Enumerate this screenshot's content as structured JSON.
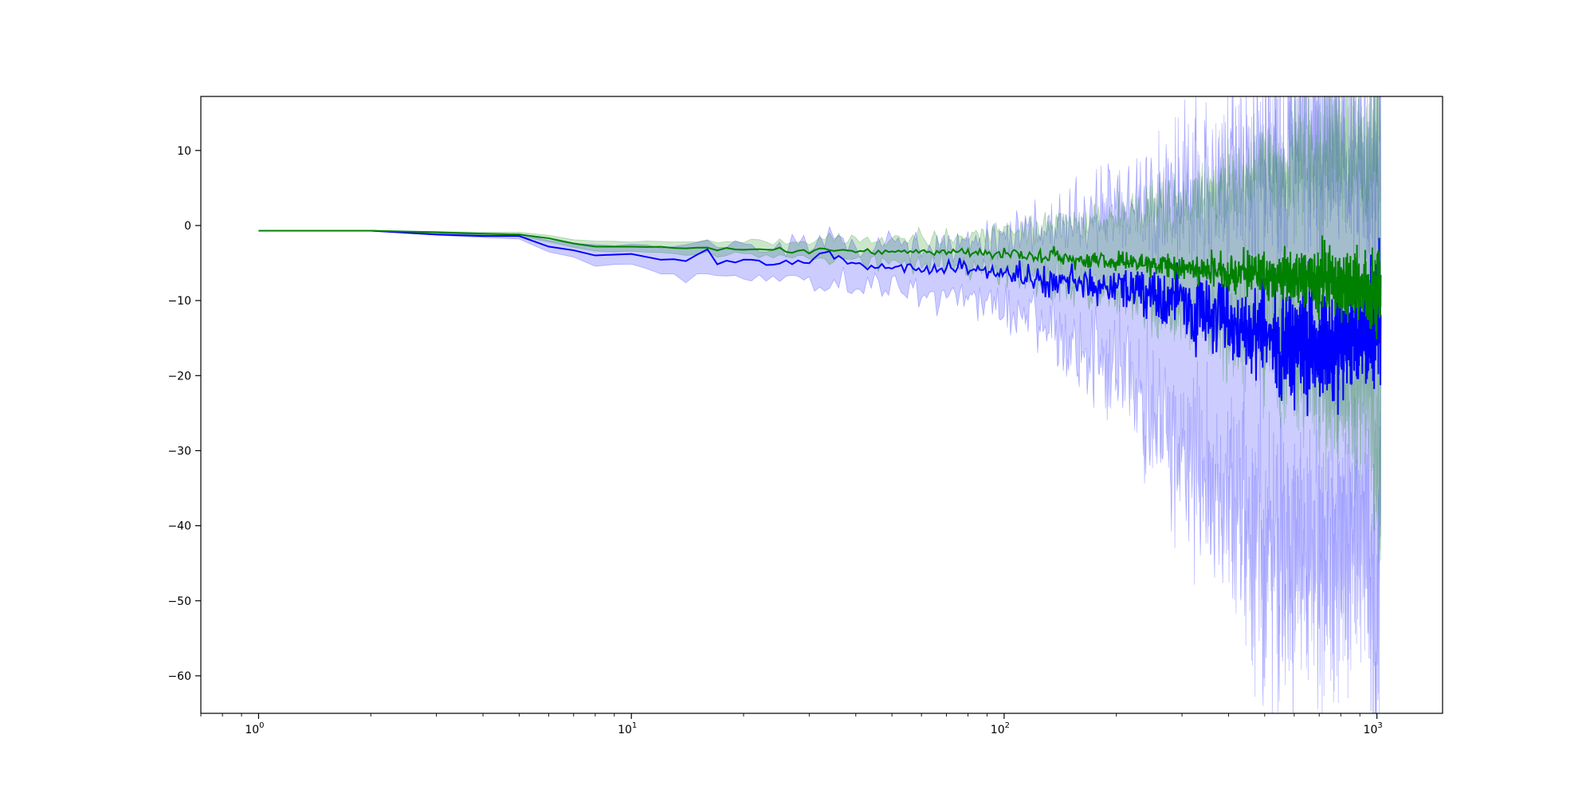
{
  "chart_data": {
    "type": "line",
    "title": "",
    "xlabel": "",
    "ylabel": "",
    "xscale": "log",
    "xlim": [
      0.7,
      1500
    ],
    "ylim": [
      -65,
      17.2
    ],
    "grid": false,
    "legend": "none",
    "x_ticks": [
      {
        "base": "10",
        "exp": "0",
        "value": 1
      },
      {
        "base": "10",
        "exp": "1",
        "value": 10
      },
      {
        "base": "10",
        "exp": "2",
        "value": 100
      },
      {
        "base": "10",
        "exp": "3",
        "value": 1000
      }
    ],
    "y_ticks": [
      {
        "label": "10",
        "value": 10
      },
      {
        "label": "0",
        "value": 0
      },
      {
        "label": "−10",
        "value": -10
      },
      {
        "label": "−20",
        "value": -20
      },
      {
        "label": "−30",
        "value": -30
      },
      {
        "label": "−40",
        "value": -40
      },
      {
        "label": "−50",
        "value": -50
      },
      {
        "label": "−60",
        "value": -60
      }
    ],
    "series": [
      {
        "color": "#0000ff",
        "line_width": 2,
        "band_opacity": 0.2,
        "x": [
          1,
          2,
          3,
          4,
          5,
          6,
          7,
          8,
          10,
          12,
          14,
          16,
          17,
          20,
          25,
          30,
          33,
          40,
          50,
          60,
          70,
          80,
          90,
          100,
          120,
          150,
          200,
          250,
          300,
          350,
          400,
          450,
          500,
          550,
          600,
          650,
          700,
          750,
          800,
          850,
          900,
          950,
          1000,
          1024
        ],
        "values": [
          -0.7,
          -0.7,
          -1.2,
          -1.4,
          -1.4,
          -2.8,
          -3.3,
          -4.0,
          -3.8,
          -4.5,
          -4.6,
          -3.2,
          -5.0,
          -4.8,
          -5.2,
          -4.7,
          -3.4,
          -5.5,
          -5.6,
          -6.0,
          -5.5,
          -5.8,
          -6.2,
          -6.0,
          -7.0,
          -7.5,
          -8.3,
          -9.5,
          -10.5,
          -11.5,
          -12.5,
          -13.5,
          -14.0,
          -15.0,
          -15.0,
          -15.5,
          -16.0,
          -16.0,
          -15.5,
          -15.0,
          -14.0,
          -13.0,
          -12.0,
          -11.0
        ],
        "lower": [
          -0.7,
          -0.7,
          -1.3,
          -1.6,
          -1.8,
          -3.5,
          -4.2,
          -5.5,
          -5.0,
          -6.5,
          -6.8,
          -6.5,
          -6.8,
          -7.0,
          -7.5,
          -7.0,
          -7.0,
          -8.0,
          -8.5,
          -9.0,
          -9.5,
          -10.0,
          -10.5,
          -11.0,
          -13.0,
          -16.0,
          -20.0,
          -26.0,
          -30.0,
          -34.0,
          -38.0,
          -42.0,
          -44.0,
          -45.0,
          -46.0,
          -46.0,
          -46.0,
          -45.0,
          -44.0,
          -42.0,
          -41.0,
          -44.0,
          -60.0,
          -35.0
        ],
        "upper": [
          -0.7,
          -0.7,
          -1.0,
          -1.2,
          -1.1,
          -2.0,
          -2.4,
          -2.6,
          -2.7,
          -2.8,
          -2.8,
          -1.8,
          -2.8,
          -2.7,
          -2.8,
          -2.6,
          -1.4,
          -2.8,
          -2.5,
          -2.5,
          -2.0,
          -1.8,
          -2.0,
          -1.5,
          -0.5,
          0.5,
          2.0,
          3.5,
          5.0,
          6.0,
          7.0,
          8.0,
          9.0,
          10.0,
          10.5,
          11.0,
          11.5,
          11.5,
          11.0,
          10.0,
          9.0,
          8.0,
          11.0,
          12.0
        ]
      },
      {
        "color": "#008000",
        "line_width": 2,
        "band_opacity": 0.2,
        "x": [
          1,
          2,
          3,
          4,
          5,
          6,
          7,
          8,
          10,
          12,
          14,
          16,
          17,
          20,
          25,
          30,
          33,
          40,
          50,
          60,
          70,
          80,
          90,
          100,
          120,
          150,
          200,
          250,
          300,
          350,
          400,
          450,
          500,
          550,
          600,
          650,
          700,
          750,
          800,
          850,
          900,
          950,
          1000,
          1024
        ],
        "values": [
          -0.7,
          -0.7,
          -0.9,
          -1.1,
          -1.2,
          -1.7,
          -2.4,
          -2.8,
          -2.8,
          -2.9,
          -3.0,
          -2.9,
          -3.2,
          -3.1,
          -3.3,
          -3.4,
          -3.2,
          -3.4,
          -3.5,
          -3.5,
          -3.6,
          -3.5,
          -3.7,
          -3.8,
          -4.0,
          -4.3,
          -4.7,
          -5.2,
          -5.5,
          -5.8,
          -6.0,
          -6.2,
          -6.5,
          -6.8,
          -7.0,
          -7.0,
          -7.0,
          -7.2,
          -7.5,
          -8.0,
          -8.0,
          -8.5,
          -8.5,
          -9.5
        ],
        "lower": [
          -0.7,
          -0.7,
          -1.0,
          -1.3,
          -1.4,
          -2.2,
          -2.9,
          -3.4,
          -3.5,
          -3.7,
          -3.8,
          -3.7,
          -4.0,
          -4.0,
          -4.3,
          -4.5,
          -4.4,
          -4.8,
          -5.0,
          -5.2,
          -5.5,
          -5.6,
          -6.0,
          -6.3,
          -7.0,
          -8.0,
          -9.0,
          -10.5,
          -11.5,
          -12.5,
          -13.5,
          -14.5,
          -15.5,
          -17.0,
          -18.0,
          -19.0,
          -20.0,
          -21.0,
          -22.0,
          -22.0,
          -22.0,
          -23.0,
          -30.0,
          -35.0
        ],
        "upper": [
          -0.7,
          -0.7,
          -0.8,
          -0.9,
          -0.9,
          -1.3,
          -1.9,
          -2.1,
          -2.1,
          -2.1,
          -2.2,
          -1.9,
          -2.3,
          -2.1,
          -2.2,
          -2.2,
          -1.8,
          -2.0,
          -1.8,
          -1.7,
          -1.6,
          -1.3,
          -1.1,
          -0.8,
          -0.3,
          0.3,
          1.0,
          2.0,
          3.0,
          4.0,
          5.0,
          6.0,
          7.0,
          8.0,
          9.0,
          9.5,
          10.0,
          10.5,
          10.0,
          9.5,
          9.0,
          9.0,
          11.0,
          13.0
        ]
      }
    ]
  }
}
